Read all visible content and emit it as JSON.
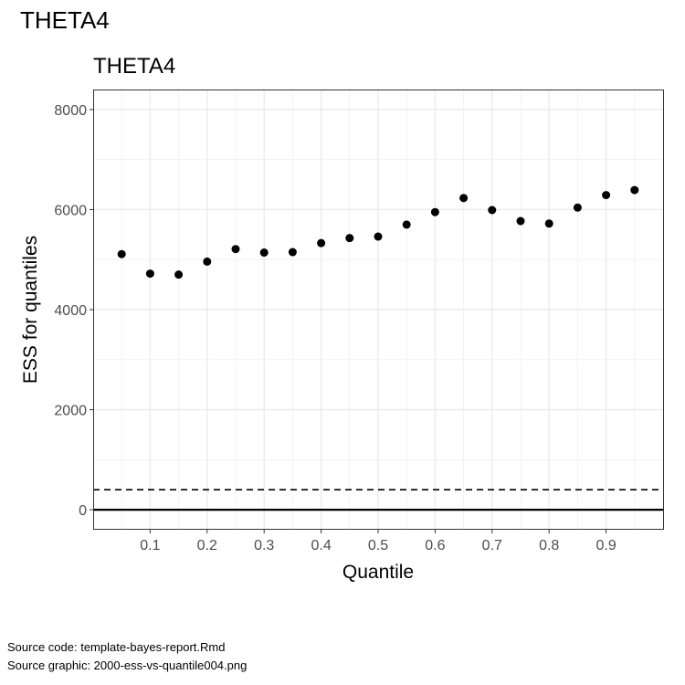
{
  "page": {
    "title": "THETA4",
    "source_code": "Source code: template-bayes-report.Rmd",
    "source_graphic": "Source graphic: 2000-ess-vs-quantile004.png"
  },
  "chart_data": {
    "type": "scatter",
    "title": "THETA4",
    "xlabel": "Quantile",
    "ylabel": "ESS for quantiles",
    "xlim": [
      0.0,
      1.0
    ],
    "ylim": [
      -400,
      8400
    ],
    "x_ticks": [
      0.1,
      0.2,
      0.3,
      0.4,
      0.5,
      0.6,
      0.7,
      0.8,
      0.9
    ],
    "x_tick_labels": [
      "0.1",
      "0.2",
      "0.3",
      "0.4",
      "0.5",
      "0.6",
      "0.7",
      "0.8",
      "0.9"
    ],
    "y_ticks": [
      0,
      2000,
      4000,
      6000,
      8000
    ],
    "y_tick_labels": [
      "0",
      "2000",
      "4000",
      "6000",
      "8000"
    ],
    "grid": true,
    "reference_lines": [
      {
        "y": 0,
        "style": "solid"
      },
      {
        "y": 400,
        "style": "dashed"
      }
    ],
    "series": [
      {
        "x": [
          0.05,
          0.1,
          0.15,
          0.2,
          0.25,
          0.3,
          0.35,
          0.4,
          0.45,
          0.5,
          0.55,
          0.6,
          0.65,
          0.7,
          0.75,
          0.8,
          0.85,
          0.9,
          0.95
        ],
        "y": [
          5110,
          4720,
          4700,
          4960,
          5210,
          5140,
          5150,
          5330,
          5430,
          5460,
          5700,
          5950,
          6230,
          5990,
          5770,
          5720,
          6040,
          6290,
          6390
        ]
      }
    ],
    "colors": {
      "points": "#000000",
      "grid": "#ebebeb",
      "panel_border": "#333333"
    }
  }
}
